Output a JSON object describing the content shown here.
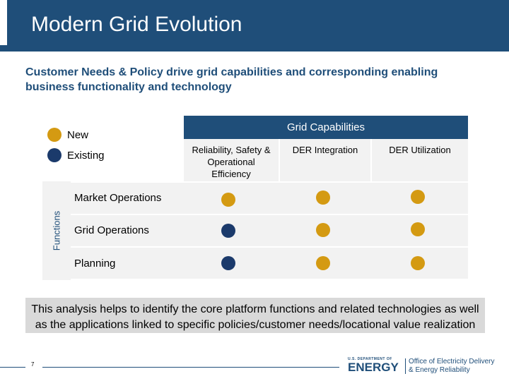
{
  "header": {
    "title": "Modern Grid Evolution"
  },
  "subtitle": "Customer Needs & Policy drive grid capabilities and corresponding enabling business functionality and technology",
  "legend": [
    {
      "label": "New",
      "color": "#d49a12"
    },
    {
      "label": "Existing",
      "color": "#1b3a6b"
    }
  ],
  "table": {
    "capabilities_header": "Grid Capabilities",
    "functions_label": "Functions",
    "columns": [
      "Reliability, Safety & Operational Efficiency",
      "DER Integration",
      "DER Utilization"
    ],
    "rows": [
      {
        "label": "Market Operations",
        "cells": [
          "New",
          "New",
          "New"
        ]
      },
      {
        "label": "Grid Operations",
        "cells": [
          "Existing",
          "New",
          "New"
        ]
      },
      {
        "label": "Planning",
        "cells": [
          "Existing",
          "New",
          "New"
        ]
      }
    ]
  },
  "note": "This analysis helps to identify the core platform functions and related technologies as well as the applications linked to specific policies/customer needs/locational value realization",
  "footer": {
    "page_number": "7",
    "doe_line1": "U.S. DEPARTMENT OF",
    "doe_line2": "ENERGY",
    "office_line1": "Office of Electricity Delivery",
    "office_line2": "& Energy Reliability"
  }
}
